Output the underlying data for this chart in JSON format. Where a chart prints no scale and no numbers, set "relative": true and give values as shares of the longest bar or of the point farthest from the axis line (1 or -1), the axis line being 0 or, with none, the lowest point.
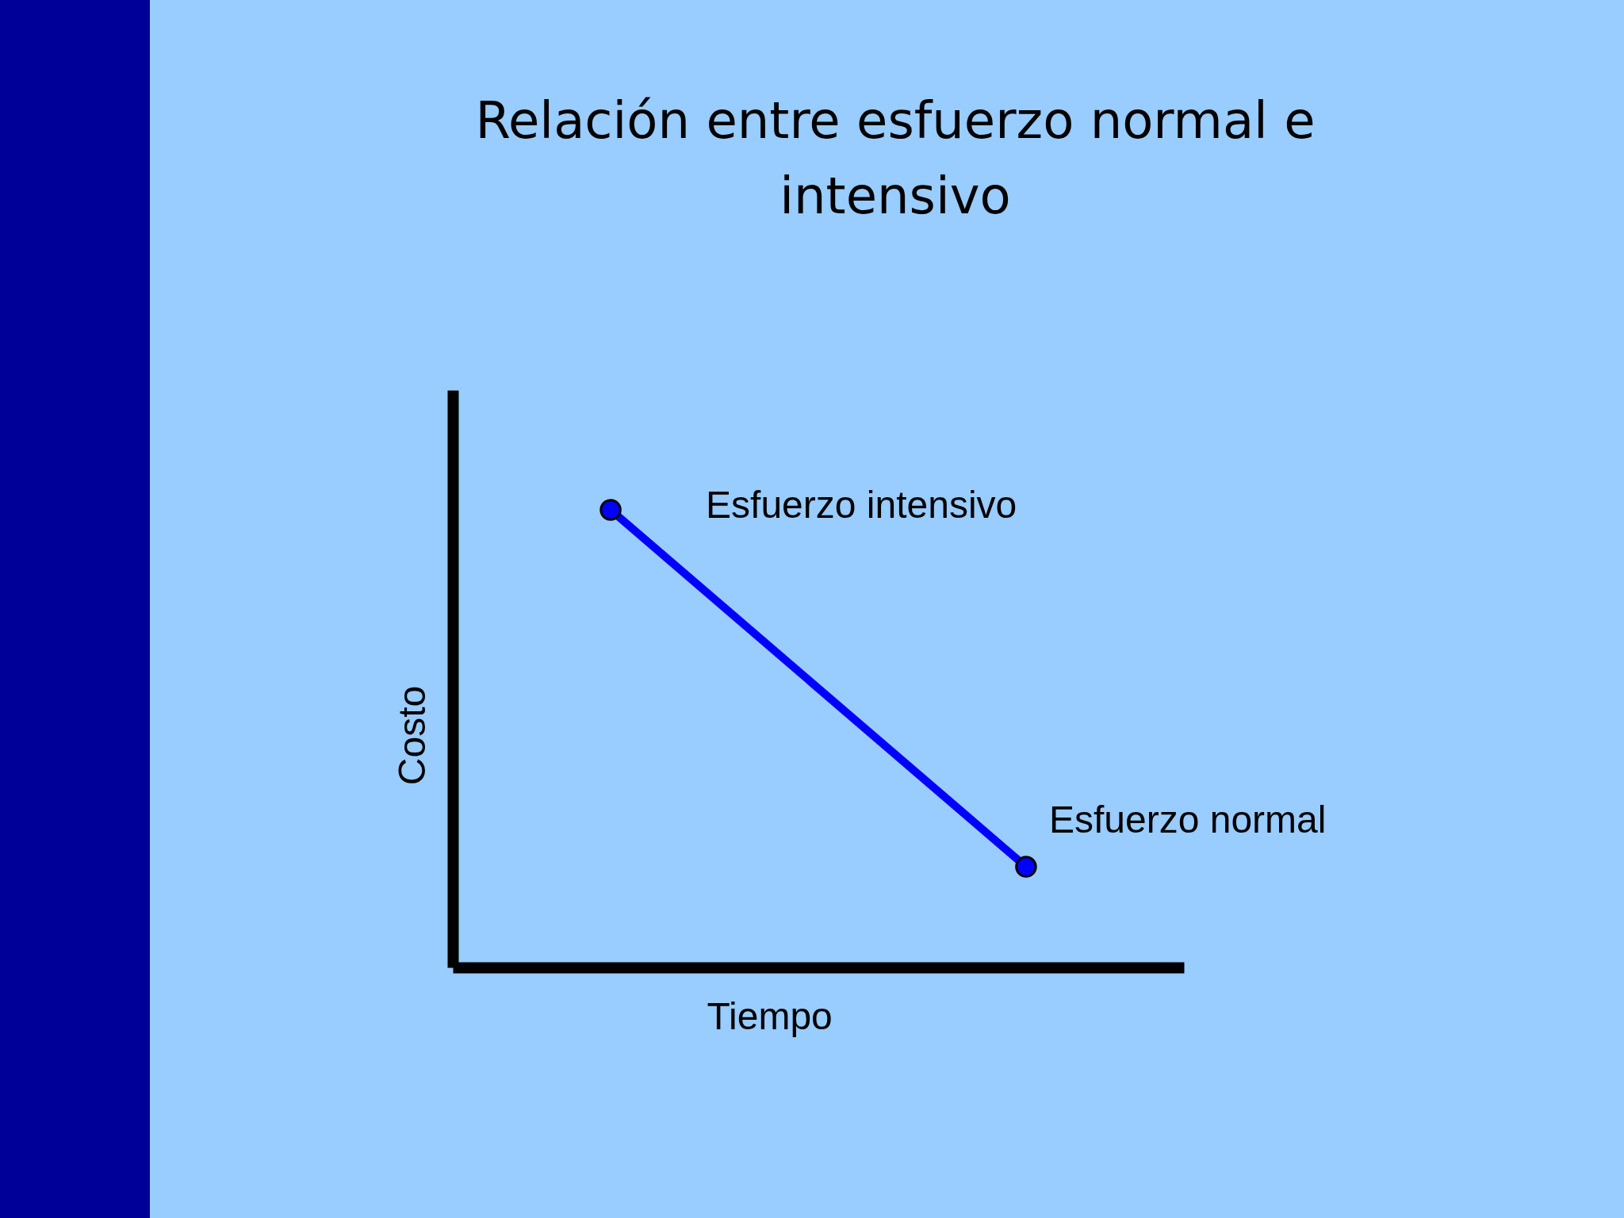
{
  "chart_data": {
    "type": "line",
    "title": "Relación entre esfuerzo normal e intensivo",
    "xlabel": "Tiempo",
    "ylabel": "Costo",
    "categories": [
      null,
      null
    ],
    "relative": true,
    "values": [
      1,
      0.22
    ],
    "color": "#0000ff",
    "annotations": [
      "Esfuerzo intensivo",
      "Esfuerzo normal"
    ],
    "marker": "circle",
    "line_style": "solid"
  }
}
